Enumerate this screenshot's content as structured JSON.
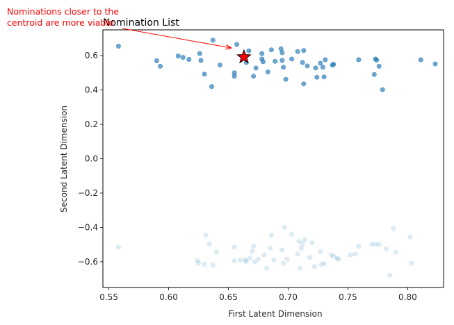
{
  "chart_data": {
    "type": "scatter",
    "title": "Nomination List",
    "xlabel": "First Latent Dimension",
    "ylabel": "Second Latent Dimension",
    "xlim": [
      0.545,
      0.83
    ],
    "ylim": [
      -0.75,
      0.75
    ],
    "xticks": [
      0.55,
      0.6,
      0.65,
      0.7,
      0.75,
      0.8
    ],
    "yticks": [
      -0.6,
      -0.4,
      -0.2,
      0.0,
      0.2,
      0.4,
      0.6
    ],
    "xtick_labels": [
      "0.55",
      "0.60",
      "0.65",
      "0.70",
      "0.75",
      "0.80"
    ],
    "ytick_labels": [
      "−0.6",
      "−0.4",
      "−0.2",
      "0.0",
      "0.2",
      "0.4",
      "0.6"
    ],
    "grid": false,
    "colors": {
      "points": "#1f77b4",
      "centroid": "#ff0000",
      "annotation": "#ff0000"
    },
    "annotation": {
      "lines": [
        "Nominations closer to the",
        "centroid are more viable"
      ],
      "arrow_to": [
        0.652,
        0.645
      ]
    },
    "centroid": {
      "x": 0.663,
      "y": 0.592,
      "marker": "star"
    },
    "series": [
      {
        "alpha": 0.65,
        "points": [
          [
            0.558,
            0.655
          ],
          [
            0.59,
            0.57
          ],
          [
            0.593,
            0.538
          ],
          [
            0.608,
            0.598
          ],
          [
            0.612,
            0.59
          ],
          [
            0.617,
            0.578
          ],
          [
            0.626,
            0.612
          ],
          [
            0.627,
            0.572
          ],
          [
            0.63,
            0.492
          ],
          [
            0.636,
            0.42
          ],
          [
            0.637,
            0.69
          ],
          [
            0.643,
            0.545
          ],
          [
            0.655,
            0.48
          ],
          [
            0.655,
            0.5
          ],
          [
            0.657,
            0.665
          ],
          [
            0.665,
            0.56
          ],
          [
            0.667,
            0.628
          ],
          [
            0.671,
            0.48
          ],
          [
            0.673,
            0.528
          ],
          [
            0.678,
            0.612
          ],
          [
            0.678,
            0.58
          ],
          [
            0.679,
            0.565
          ],
          [
            0.683,
            0.505
          ],
          [
            0.686,
            0.634
          ],
          [
            0.689,
            0.567
          ],
          [
            0.694,
            0.64
          ],
          [
            0.695,
            0.617
          ],
          [
            0.695,
            0.572
          ],
          [
            0.696,
            0.532
          ],
          [
            0.698,
            0.462
          ],
          [
            0.703,
            0.58
          ],
          [
            0.708,
            0.624
          ],
          [
            0.712,
            0.56
          ],
          [
            0.713,
            0.63
          ],
          [
            0.713,
            0.436
          ],
          [
            0.716,
            0.54
          ],
          [
            0.723,
            0.528
          ],
          [
            0.724,
            0.474
          ],
          [
            0.727,
            0.556
          ],
          [
            0.729,
            0.532
          ],
          [
            0.73,
            0.476
          ],
          [
            0.731,
            0.576
          ],
          [
            0.737,
            0.545
          ],
          [
            0.738,
            0.55
          ],
          [
            0.759,
            0.576
          ],
          [
            0.772,
            0.49
          ],
          [
            0.773,
            0.58
          ],
          [
            0.774,
            0.574
          ],
          [
            0.776,
            0.538
          ],
          [
            0.779,
            0.402
          ],
          [
            0.811,
            0.576
          ],
          [
            0.823,
            0.552
          ]
        ]
      },
      {
        "alpha": 0.14,
        "points": [
          [
            0.558,
            -0.515
          ],
          [
            0.624,
            -0.592
          ],
          [
            0.625,
            -0.608
          ],
          [
            0.63,
            -0.615
          ],
          [
            0.631,
            -0.445
          ],
          [
            0.634,
            -0.495
          ],
          [
            0.637,
            -0.62
          ],
          [
            0.64,
            -0.542
          ],
          [
            0.655,
            -0.515
          ],
          [
            0.655,
            -0.595
          ],
          [
            0.66,
            -0.59
          ],
          [
            0.664,
            -0.59
          ],
          [
            0.665,
            -0.598
          ],
          [
            0.668,
            -0.578
          ],
          [
            0.67,
            -0.54
          ],
          [
            0.671,
            -0.51
          ],
          [
            0.672,
            -0.6
          ],
          [
            0.675,
            -0.585
          ],
          [
            0.68,
            -0.56
          ],
          [
            0.682,
            -0.638
          ],
          [
            0.685,
            -0.52
          ],
          [
            0.686,
            -0.445
          ],
          [
            0.688,
            -0.59
          ],
          [
            0.695,
            -0.532
          ],
          [
            0.696,
            -0.61
          ],
          [
            0.697,
            -0.4
          ],
          [
            0.699,
            -0.585
          ],
          [
            0.703,
            -0.44
          ],
          [
            0.708,
            -0.555
          ],
          [
            0.709,
            -0.48
          ],
          [
            0.71,
            -0.638
          ],
          [
            0.711,
            -0.52
          ],
          [
            0.712,
            -0.495
          ],
          [
            0.714,
            -0.47
          ],
          [
            0.718,
            -0.575
          ],
          [
            0.72,
            -0.49
          ],
          [
            0.722,
            -0.628
          ],
          [
            0.727,
            -0.54
          ],
          [
            0.728,
            -0.615
          ],
          [
            0.73,
            -0.61
          ],
          [
            0.736,
            -0.56
          ],
          [
            0.738,
            -0.568
          ],
          [
            0.741,
            -0.58
          ],
          [
            0.742,
            -0.585
          ],
          [
            0.752,
            -0.56
          ],
          [
            0.756,
            -0.555
          ],
          [
            0.759,
            -0.51
          ],
          [
            0.77,
            -0.498
          ],
          [
            0.773,
            -0.498
          ],
          [
            0.776,
            -0.5
          ],
          [
            0.782,
            -0.525
          ],
          [
            0.785,
            -0.678
          ],
          [
            0.788,
            -0.405
          ],
          [
            0.79,
            -0.545
          ],
          [
            0.802,
            -0.455
          ],
          [
            0.803,
            -0.608
          ]
        ]
      }
    ]
  }
}
